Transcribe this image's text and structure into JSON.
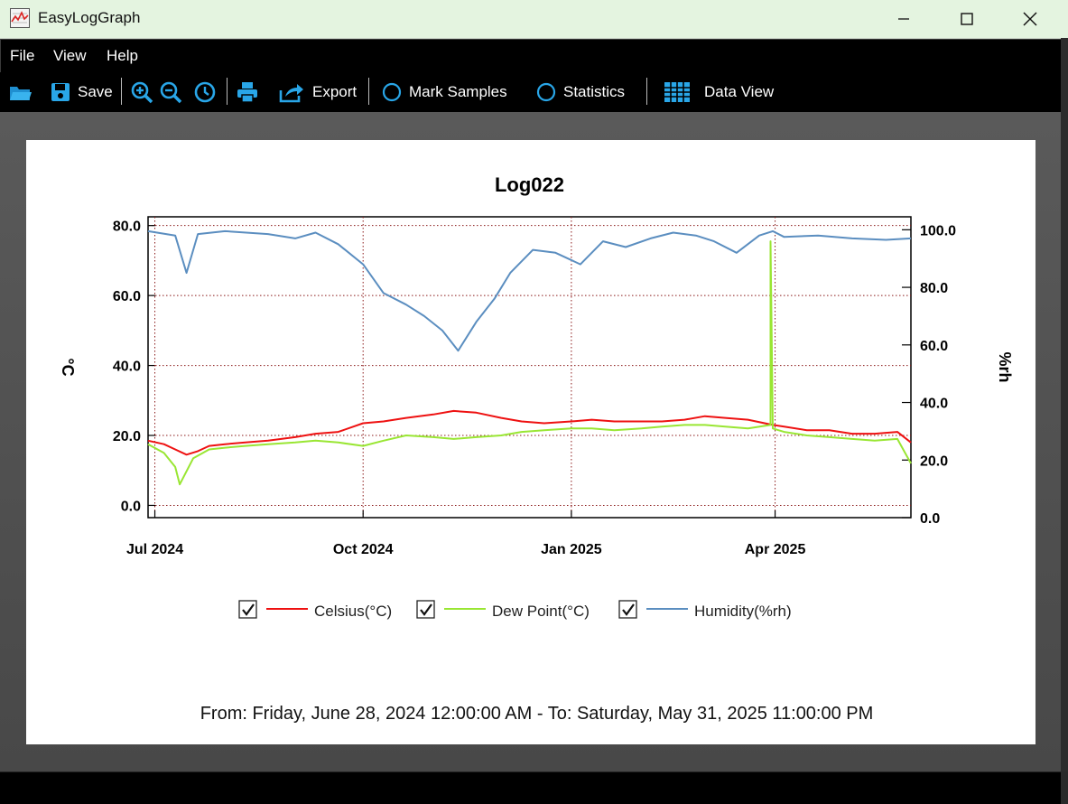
{
  "window": {
    "title": "EasyLogGraph"
  },
  "menu": {
    "items": [
      "File",
      "View",
      "Help"
    ]
  },
  "toolbar": {
    "save_label": "Save",
    "export_label": "Export",
    "mark_samples_label": "Mark Samples",
    "statistics_label": "Statistics",
    "data_view_label": "Data View"
  },
  "colors": {
    "celsius": "#ee1111",
    "dew_point": "#99e633",
    "humidity": "#5b8ec0",
    "grid": "#8b1a1a",
    "toolbar_icon": "#29a6e8"
  },
  "icons": {
    "open": "open-folder-icon",
    "save": "save-disk-icon",
    "zoom_in": "zoom-in-icon",
    "zoom_out": "zoom-out-icon",
    "reset": "clock-icon",
    "print": "printer-icon",
    "export": "export-arrow-icon",
    "mark": "radio-circle-icon",
    "stats": "radio-circle-icon",
    "grid": "grid-table-icon"
  },
  "range_text": "From: Friday, June 28, 2024 12:00:00 AM  -  To: Saturday, May 31, 2025 11:00:00 PM",
  "chart_data": {
    "type": "line",
    "title": "Log022",
    "x_type": "date",
    "x_range": [
      "2024-06-28",
      "2025-05-31"
    ],
    "x_ticks": [
      {
        "date": "2024-07-01",
        "label": "Jul 2024"
      },
      {
        "date": "2024-10-01",
        "label": "Oct 2024"
      },
      {
        "date": "2025-01-01",
        "label": "Jan 2025"
      },
      {
        "date": "2025-04-01",
        "label": "Apr 2025"
      }
    ],
    "y_left": {
      "label": "°C",
      "range": [
        -3.5,
        82.5
      ],
      "ticks": [
        "0.0",
        "20.0",
        "40.0",
        "60.0",
        "80.0"
      ],
      "tick_values": [
        0,
        20,
        40,
        60,
        80
      ]
    },
    "y_right": {
      "label": "%rh",
      "range": [
        0,
        104.5
      ],
      "ticks": [
        "0.0",
        "20.0",
        "40.0",
        "60.0",
        "80.0",
        "100.0"
      ],
      "tick_values": [
        0,
        20,
        40,
        60,
        80,
        100
      ]
    },
    "grid": true,
    "legend_position": "bottom",
    "series": [
      {
        "name": "Celsius(°C)",
        "axis": "left",
        "checked": true,
        "points": [
          [
            "2024-06-28",
            18.5
          ],
          [
            "2024-07-05",
            17.5
          ],
          [
            "2024-07-10",
            16.0
          ],
          [
            "2024-07-15",
            14.5
          ],
          [
            "2024-07-20",
            15.5
          ],
          [
            "2024-07-25",
            17.0
          ],
          [
            "2024-08-01",
            17.5
          ],
          [
            "2024-08-10",
            18.0
          ],
          [
            "2024-08-20",
            18.5
          ],
          [
            "2024-09-01",
            19.5
          ],
          [
            "2024-09-10",
            20.5
          ],
          [
            "2024-09-20",
            21.0
          ],
          [
            "2024-10-01",
            23.5
          ],
          [
            "2024-10-10",
            24.0
          ],
          [
            "2024-10-20",
            25.0
          ],
          [
            "2024-11-01",
            26.0
          ],
          [
            "2024-11-10",
            27.0
          ],
          [
            "2024-11-20",
            26.5
          ],
          [
            "2024-12-01",
            25.0
          ],
          [
            "2024-12-10",
            24.0
          ],
          [
            "2024-12-20",
            23.5
          ],
          [
            "2025-01-01",
            24.0
          ],
          [
            "2025-01-10",
            24.5
          ],
          [
            "2025-01-20",
            24.0
          ],
          [
            "2025-02-01",
            24.0
          ],
          [
            "2025-02-10",
            24.0
          ],
          [
            "2025-02-20",
            24.5
          ],
          [
            "2025-03-01",
            25.5
          ],
          [
            "2025-03-10",
            25.0
          ],
          [
            "2025-03-20",
            24.5
          ],
          [
            "2025-03-31",
            23.0
          ],
          [
            "2025-04-05",
            22.5
          ],
          [
            "2025-04-15",
            21.5
          ],
          [
            "2025-04-25",
            21.5
          ],
          [
            "2025-05-05",
            20.5
          ],
          [
            "2025-05-15",
            20.5
          ],
          [
            "2025-05-25",
            21.0
          ],
          [
            "2025-05-31",
            18.0
          ]
        ]
      },
      {
        "name": "Dew Point(°C)",
        "axis": "left",
        "checked": true,
        "points": [
          [
            "2024-06-28",
            17.5
          ],
          [
            "2024-07-05",
            15.0
          ],
          [
            "2024-07-10",
            11.0
          ],
          [
            "2024-07-12",
            6.0
          ],
          [
            "2024-07-18",
            13.5
          ],
          [
            "2024-07-25",
            16.0
          ],
          [
            "2024-08-01",
            16.5
          ],
          [
            "2024-08-10",
            17.0
          ],
          [
            "2024-08-20",
            17.5
          ],
          [
            "2024-09-01",
            18.0
          ],
          [
            "2024-09-10",
            18.5
          ],
          [
            "2024-09-20",
            18.0
          ],
          [
            "2024-10-01",
            17.0
          ],
          [
            "2024-10-10",
            18.5
          ],
          [
            "2024-10-20",
            20.0
          ],
          [
            "2024-11-01",
            19.5
          ],
          [
            "2024-11-10",
            19.0
          ],
          [
            "2024-11-20",
            19.5
          ],
          [
            "2024-12-01",
            20.0
          ],
          [
            "2024-12-10",
            21.0
          ],
          [
            "2024-12-20",
            21.5
          ],
          [
            "2025-01-01",
            22.0
          ],
          [
            "2025-01-10",
            22.0
          ],
          [
            "2025-01-20",
            21.5
          ],
          [
            "2025-02-01",
            22.0
          ],
          [
            "2025-02-10",
            22.5
          ],
          [
            "2025-02-20",
            23.0
          ],
          [
            "2025-03-01",
            23.0
          ],
          [
            "2025-03-10",
            22.5
          ],
          [
            "2025-03-20",
            22.0
          ],
          [
            "2025-03-30",
            23.0
          ],
          [
            "2025-03-30",
            75.5
          ],
          [
            "2025-03-31",
            22.0
          ],
          [
            "2025-04-05",
            21.0
          ],
          [
            "2025-04-15",
            20.0
          ],
          [
            "2025-04-25",
            19.5
          ],
          [
            "2025-05-05",
            19.0
          ],
          [
            "2025-05-15",
            18.5
          ],
          [
            "2025-05-25",
            19.0
          ],
          [
            "2025-05-31",
            12.0
          ]
        ]
      },
      {
        "name": "Humidity(%rh)",
        "axis": "right",
        "checked": true,
        "points": [
          [
            "2024-06-28",
            99.5
          ],
          [
            "2024-07-10",
            98.0
          ],
          [
            "2024-07-15",
            85.0
          ],
          [
            "2024-07-20",
            98.5
          ],
          [
            "2024-08-01",
            99.5
          ],
          [
            "2024-08-20",
            98.5
          ],
          [
            "2024-09-01",
            97.0
          ],
          [
            "2024-09-10",
            99.0
          ],
          [
            "2024-09-20",
            95.0
          ],
          [
            "2024-10-01",
            88.0
          ],
          [
            "2024-10-10",
            78.0
          ],
          [
            "2024-10-20",
            74.0
          ],
          [
            "2024-10-28",
            70.0
          ],
          [
            "2024-11-05",
            65.0
          ],
          [
            "2024-11-12",
            58.0
          ],
          [
            "2024-11-20",
            68.0
          ],
          [
            "2024-11-28",
            76.0
          ],
          [
            "2024-12-05",
            85.0
          ],
          [
            "2024-12-15",
            93.0
          ],
          [
            "2024-12-25",
            92.0
          ],
          [
            "2025-01-05",
            88.0
          ],
          [
            "2025-01-15",
            96.0
          ],
          [
            "2025-01-25",
            94.0
          ],
          [
            "2025-02-05",
            97.0
          ],
          [
            "2025-02-15",
            99.0
          ],
          [
            "2025-02-25",
            98.0
          ],
          [
            "2025-03-05",
            96.0
          ],
          [
            "2025-03-15",
            92.0
          ],
          [
            "2025-03-25",
            98.0
          ],
          [
            "2025-03-31",
            99.5
          ],
          [
            "2025-04-05",
            97.5
          ],
          [
            "2025-04-20",
            98.0
          ],
          [
            "2025-05-05",
            97.0
          ],
          [
            "2025-05-20",
            96.5
          ],
          [
            "2025-05-31",
            97.0
          ]
        ]
      }
    ]
  }
}
